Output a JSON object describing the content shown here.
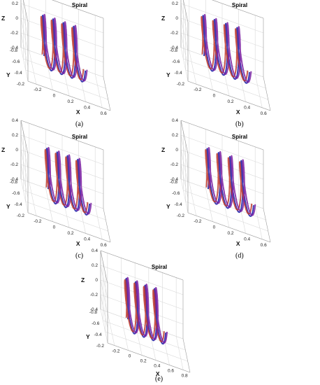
{
  "figure": {
    "captions": [
      "(a)",
      "(b)",
      "(c)",
      "(d)",
      "(e)"
    ]
  },
  "chart_data": [
    {
      "type": "line",
      "panel": "(a)",
      "title": "Spiral",
      "xlabel": "X",
      "ylabel": "Y",
      "zlabel": "Z",
      "x_ticks": [
        "-0.2",
        "0",
        "0.2",
        "0.4",
        "0.6"
      ],
      "y_ticks": [
        "-0.8",
        "-0.6",
        "-0.4",
        "-0.2"
      ],
      "z_ticks": [
        "-0.4",
        "-0.2",
        "0",
        "0.2",
        "0.4"
      ],
      "xlim": [
        -0.3,
        0.7
      ],
      "ylim": [
        -0.8,
        -0.2
      ],
      "zlim": [
        -0.4,
        0.4
      ],
      "grid": true,
      "series": [
        {
          "color": "#1a1aa6",
          "radius": 0.3,
          "turns": 4,
          "x_range": [
            -0.1,
            0.4
          ],
          "y_center": -0.5,
          "z_center": 0.0
        },
        {
          "color": "#c0392b",
          "radius": 0.28,
          "turns": 4,
          "x_range": [
            -0.12,
            0.38
          ],
          "y_center": -0.5,
          "z_center": 0.0
        },
        {
          "color": "#7a1fa2",
          "radius": 0.3,
          "turns": 4,
          "x_range": [
            -0.08,
            0.42
          ],
          "y_center": -0.5,
          "z_center": 0.02
        }
      ]
    },
    {
      "type": "line",
      "panel": "(b)",
      "title": "Spiral",
      "xlabel": "X",
      "ylabel": "Y",
      "zlabel": "Z",
      "x_ticks": [
        "-0.2",
        "0",
        "0.2",
        "0.4",
        "0.6"
      ],
      "y_ticks": [
        "-0.8",
        "-0.6",
        "-0.4",
        "-0.2"
      ],
      "z_ticks": [
        "-0.4",
        "-0.2",
        "0",
        "0.2",
        "0.4"
      ],
      "xlim": [
        -0.3,
        0.7
      ],
      "ylim": [
        -0.8,
        -0.2
      ],
      "zlim": [
        -0.4,
        0.4
      ],
      "grid": true,
      "series": [
        {
          "color": "#1a1aa6",
          "radius": 0.3,
          "turns": 4,
          "x_range": [
            -0.1,
            0.45
          ],
          "y_center": -0.5,
          "z_center": 0.0
        },
        {
          "color": "#c0392b",
          "radius": 0.28,
          "turns": 4,
          "x_range": [
            -0.12,
            0.43
          ],
          "y_center": -0.5,
          "z_center": 0.0
        },
        {
          "color": "#7a1fa2",
          "radius": 0.3,
          "turns": 4,
          "x_range": [
            -0.08,
            0.47
          ],
          "y_center": -0.5,
          "z_center": 0.02
        }
      ]
    },
    {
      "type": "line",
      "panel": "(c)",
      "title": "Spiral",
      "xlabel": "X",
      "ylabel": "Y",
      "zlabel": "Z",
      "x_ticks": [
        "-0.2",
        "0",
        "0.2",
        "0.4",
        "0.6"
      ],
      "y_ticks": [
        "-0.8",
        "-0.6",
        "-0.4",
        "-0.2"
      ],
      "z_ticks": [
        "-0.4",
        "-0.2",
        "0",
        "0.2",
        "0.4"
      ],
      "xlim": [
        -0.3,
        0.7
      ],
      "ylim": [
        -0.8,
        -0.2
      ],
      "zlim": [
        -0.4,
        0.4
      ],
      "grid": true,
      "series": [
        {
          "color": "#1a1aa6",
          "radius": 0.3,
          "turns": 4,
          "x_range": [
            -0.05,
            0.45
          ],
          "y_center": -0.5,
          "z_center": 0.0
        },
        {
          "color": "#c0392b",
          "radius": 0.28,
          "turns": 4,
          "x_range": [
            -0.07,
            0.43
          ],
          "y_center": -0.5,
          "z_center": 0.0
        },
        {
          "color": "#7a1fa2",
          "radius": 0.3,
          "turns": 4,
          "x_range": [
            -0.03,
            0.47
          ],
          "y_center": -0.5,
          "z_center": 0.02
        }
      ]
    },
    {
      "type": "line",
      "panel": "(d)",
      "title": "Spiral",
      "xlabel": "X",
      "ylabel": "Y",
      "zlabel": "Z",
      "x_ticks": [
        "-0.2",
        "0",
        "0.2",
        "0.4",
        "0.6"
      ],
      "y_ticks": [
        "-0.8",
        "-0.6",
        "-0.4",
        "-0.2"
      ],
      "z_ticks": [
        "-0.4",
        "-0.2",
        "0",
        "0.2",
        "0.4"
      ],
      "xlim": [
        -0.3,
        0.7
      ],
      "ylim": [
        -0.8,
        -0.2
      ],
      "zlim": [
        -0.4,
        0.4
      ],
      "grid": true,
      "series": [
        {
          "color": "#1a1aa6",
          "radius": 0.3,
          "turns": 4,
          "x_range": [
            -0.05,
            0.5
          ],
          "y_center": -0.5,
          "z_center": 0.0
        },
        {
          "color": "#c0392b",
          "radius": 0.28,
          "turns": 4,
          "x_range": [
            -0.07,
            0.48
          ],
          "y_center": -0.5,
          "z_center": 0.0
        },
        {
          "color": "#7a1fa2",
          "radius": 0.3,
          "turns": 4,
          "x_range": [
            -0.03,
            0.52
          ],
          "y_center": -0.5,
          "z_center": 0.02
        }
      ]
    },
    {
      "type": "line",
      "panel": "(e)",
      "title": "Spiral",
      "xlabel": "X",
      "ylabel": "Y",
      "zlabel": "Z",
      "x_ticks": [
        "-0.2",
        "0",
        "0.2",
        "0.4",
        "0.6",
        "0.8"
      ],
      "y_ticks": [
        "-0.8",
        "-0.6",
        "-0.4",
        "-0.2"
      ],
      "z_ticks": [
        "-0.4",
        "-0.2",
        "0",
        "0.2",
        "0.4"
      ],
      "xlim": [
        -0.3,
        0.9
      ],
      "ylim": [
        -0.8,
        -0.2
      ],
      "zlim": [
        -0.4,
        0.4
      ],
      "grid": true,
      "series": [
        {
          "color": "#1a1aa6",
          "radius": 0.3,
          "turns": 4,
          "x_range": [
            0.0,
            0.55
          ],
          "y_center": -0.5,
          "z_center": 0.0
        },
        {
          "color": "#c0392b",
          "radius": 0.28,
          "turns": 4,
          "x_range": [
            -0.02,
            0.53
          ],
          "y_center": -0.5,
          "z_center": 0.0
        },
        {
          "color": "#7a1fa2",
          "radius": 0.3,
          "turns": 4,
          "x_range": [
            0.02,
            0.57
          ],
          "y_center": -0.5,
          "z_center": 0.02
        }
      ]
    }
  ]
}
